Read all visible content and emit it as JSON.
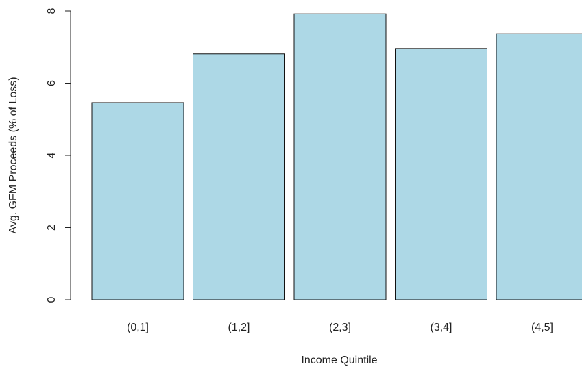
{
  "chart_data": {
    "type": "bar",
    "x_label": "Income Quintile",
    "y_label": "Avg. GFM Proceeds (% of Loss)",
    "categories": [
      "(0,1]",
      "(1,2]",
      "(2,3]",
      "(3,4]",
      "(4,5]"
    ],
    "values": [
      5.46,
      6.81,
      7.92,
      6.96,
      7.37
    ],
    "color": "#add8e6",
    "ylim": [
      0,
      8
    ],
    "yticks": [
      0,
      2,
      4,
      6,
      8
    ]
  }
}
